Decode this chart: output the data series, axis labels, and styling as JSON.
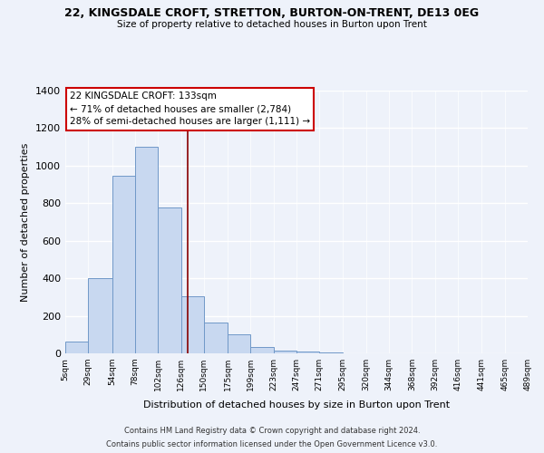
{
  "title1": "22, KINGSDALE CROFT, STRETTON, BURTON-ON-TRENT, DE13 0EG",
  "title2": "Size of property relative to detached houses in Burton upon Trent",
  "xlabel": "Distribution of detached houses by size in Burton upon Trent",
  "ylabel": "Number of detached properties",
  "bin_labels": [
    "5sqm",
    "29sqm",
    "54sqm",
    "78sqm",
    "102sqm",
    "126sqm",
    "150sqm",
    "175sqm",
    "199sqm",
    "223sqm",
    "247sqm",
    "271sqm",
    "295sqm",
    "320sqm",
    "344sqm",
    "368sqm",
    "392sqm",
    "416sqm",
    "441sqm",
    "465sqm",
    "489sqm"
  ],
  "bar_values": [
    65,
    400,
    945,
    1100,
    775,
    305,
    165,
    100,
    35,
    15,
    8,
    5,
    2,
    1,
    1,
    0,
    0,
    0,
    0,
    0
  ],
  "bin_edges": [
    5,
    29,
    54,
    78,
    102,
    126,
    150,
    175,
    199,
    223,
    247,
    271,
    295,
    320,
    344,
    368,
    392,
    416,
    441,
    465,
    489
  ],
  "bar_color": "#c8d8f0",
  "bar_edge_color": "#7098c8",
  "vline_x": 133,
  "vline_color": "#880000",
  "ylim": [
    0,
    1400
  ],
  "yticks": [
    0,
    200,
    400,
    600,
    800,
    1000,
    1200,
    1400
  ],
  "annotation_line1": "22 KINGSDALE CROFT: 133sqm",
  "annotation_line2": "← 71% of detached houses are smaller (2,784)",
  "annotation_line3": "28% of semi-detached houses are larger (1,111) →",
  "footer1": "Contains HM Land Registry data © Crown copyright and database right 2024.",
  "footer2": "Contains public sector information licensed under the Open Government Licence v3.0.",
  "background_color": "#eef2fa"
}
